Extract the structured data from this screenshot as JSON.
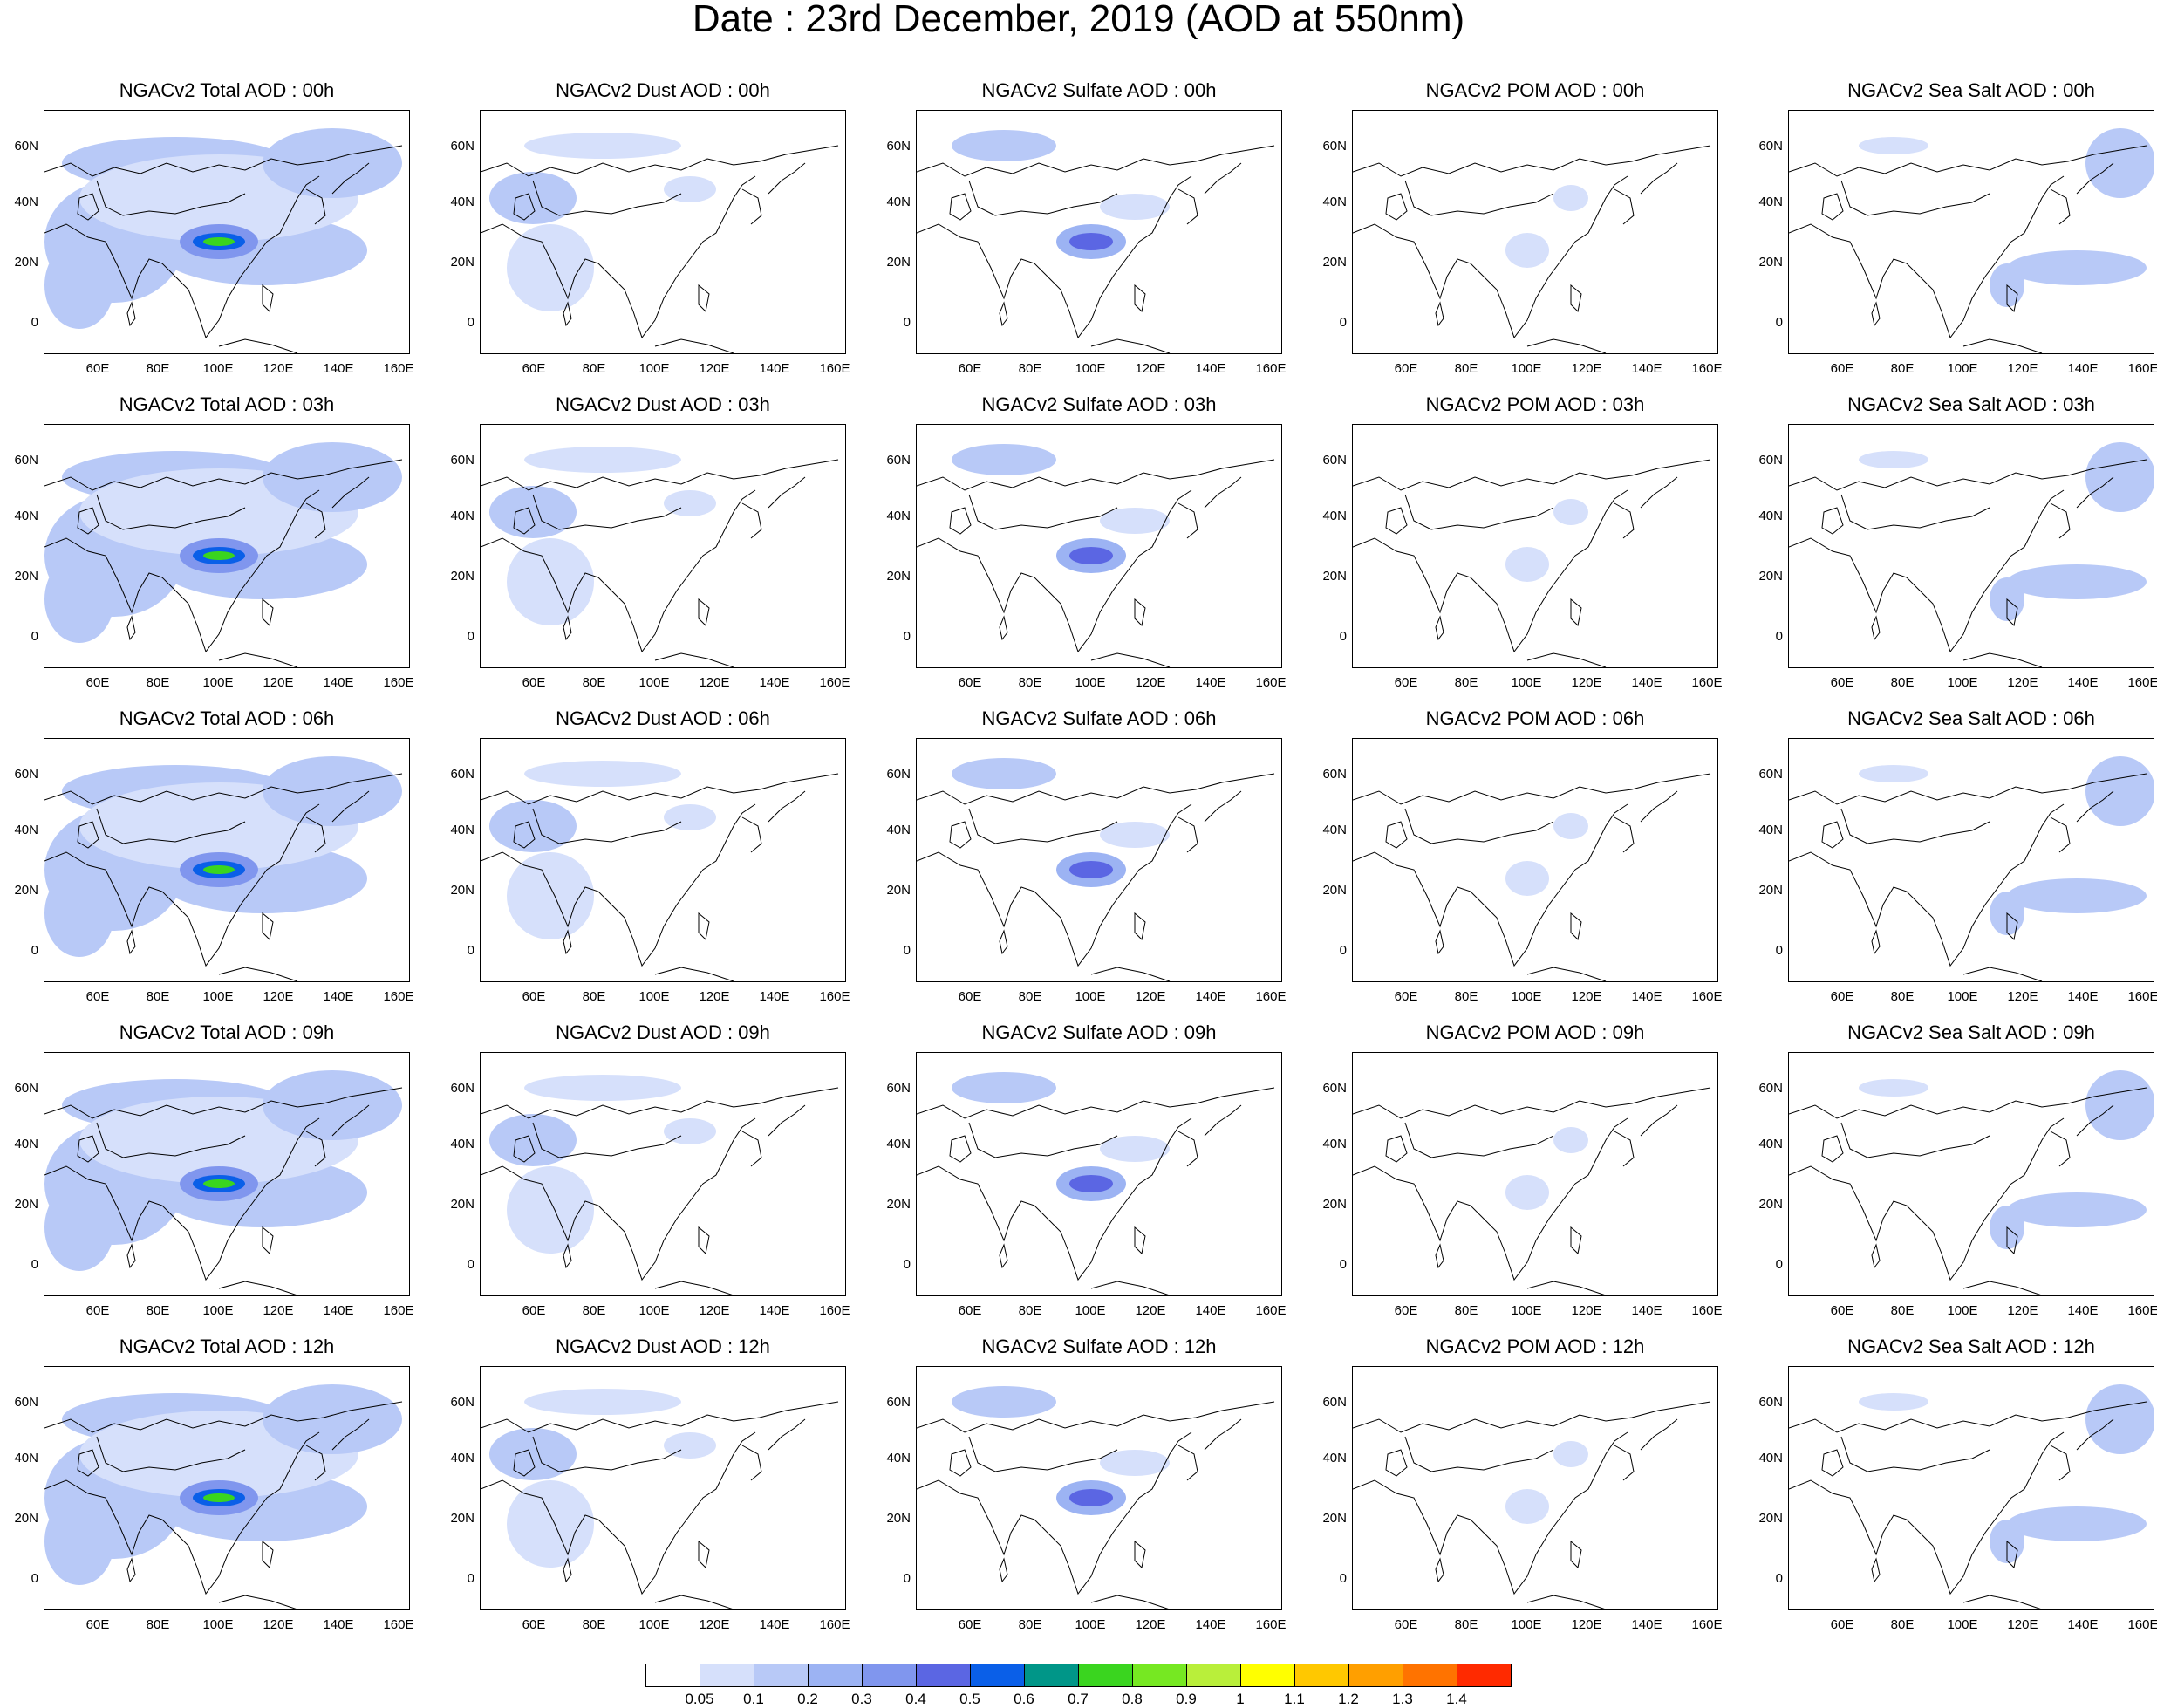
{
  "title": "Date : 23rd December, 2019 (AOD at 550nm)",
  "lat_ticks": [
    "60N",
    "40N",
    "20N",
    "0"
  ],
  "lon_ticks": [
    "60E",
    "80E",
    "100E",
    "120E",
    "140E",
    "160E"
  ],
  "fields": [
    "Total",
    "Dust",
    "Sulfate",
    "POM",
    "Sea Salt"
  ],
  "hours": [
    "00h",
    "03h",
    "06h",
    "09h",
    "12h"
  ],
  "panel_titles": [
    [
      "NGACv2 Total AOD : 00h",
      "NGACv2 Dust AOD : 00h",
      "NGACv2 Sulfate AOD : 00h",
      "NGACv2 POM AOD : 00h",
      "NGACv2 Sea Salt AOD : 00h"
    ],
    [
      "NGACv2 Total AOD : 03h",
      "NGACv2 Dust AOD : 03h",
      "NGACv2 Sulfate AOD : 03h",
      "NGACv2 POM AOD : 03h",
      "NGACv2 Sea Salt AOD : 03h"
    ],
    [
      "NGACv2 Total AOD : 06h",
      "NGACv2 Dust AOD : 06h",
      "NGACv2 Sulfate AOD : 06h",
      "NGACv2 POM AOD : 06h",
      "NGACv2 Sea Salt AOD : 06h"
    ],
    [
      "NGACv2 Total AOD : 09h",
      "NGACv2 Dust AOD : 09h",
      "NGACv2 Sulfate AOD : 09h",
      "NGACv2 POM AOD : 09h",
      "NGACv2 Sea Salt  AOD : 09h"
    ],
    [
      "NGACv2 Total AOD  : 12h",
      "NGACv2 Dust AOD : 12h",
      "NGACv2 Sulfate AOD : 12h",
      "NGACv2 POM  AOD : 12h",
      "NGACv2 Sea Salt  AOD : 12h"
    ]
  ],
  "colorbar": {
    "colors": [
      "#ffffff",
      "#d6e0fb",
      "#b8c9f7",
      "#9cb3f3",
      "#8096ee",
      "#5b66e3",
      "#0a5fe8",
      "#009688",
      "#3ad51f",
      "#76e822",
      "#b9ef3a",
      "#ffff00",
      "#ffc800",
      "#ff9f00",
      "#ff7300",
      "#ff2a00"
    ],
    "labels": [
      "0.05",
      "0.1",
      "0.2",
      "0.3",
      "0.4",
      "0.5",
      "0.6",
      "0.7",
      "0.8",
      "0.9",
      "1",
      "1.1",
      "1.2",
      "1.3",
      "1.4"
    ]
  }
}
